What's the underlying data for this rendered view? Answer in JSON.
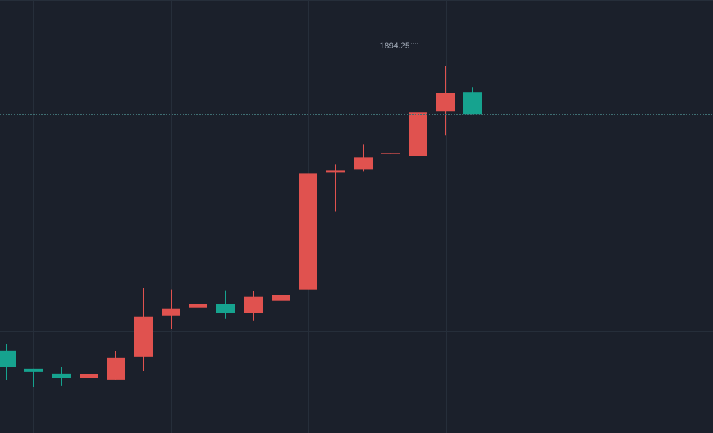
{
  "chart_data": {
    "type": "candlestick",
    "categories": [
      null,
      null,
      null,
      null,
      null,
      null,
      null,
      null,
      null,
      null,
      null,
      null,
      null,
      null,
      null,
      null,
      null,
      null
    ],
    "open": [
      1849.9,
      1847.3,
      1846.6,
      1845.9,
      1845.7,
      1849.0,
      1854.9,
      1856.1,
      1856.6,
      1855.3,
      1857.1,
      1858.7,
      1875.6,
      1876.0,
      1878.3,
      1878.0,
      1884.4,
      1887.2
    ],
    "high": [
      1850.8,
      1847.3,
      1847.5,
      1847.2,
      1849.8,
      1858.9,
      1858.7,
      1857.1,
      1858.6,
      1858.5,
      1860.0,
      1878.0,
      1876.8,
      1879.7,
      1878.4,
      1894.25,
      1891.0,
      1887.9
    ],
    "low": [
      1845.6,
      1844.6,
      1844.8,
      1845.1,
      1845.7,
      1846.9,
      1853.0,
      1855.0,
      1854.5,
      1854.2,
      1856.3,
      1856.7,
      1870.0,
      1875.8,
      1878.3,
      1878.0,
      1881.0,
      1884.0
    ],
    "close": [
      1847.5,
      1846.8,
      1845.9,
      1846.5,
      1848.9,
      1854.8,
      1855.9,
      1856.6,
      1855.3,
      1857.7,
      1857.9,
      1875.5,
      1875.9,
      1877.8,
      1878.4,
      1884.3,
      1887.1,
      1884.0
    ],
    "up_color": "#e0524f",
    "down_color": "#16a38f",
    "ylim": [
      1838,
      1900.5
    ],
    "grid": true,
    "last_price_line": true
  }
}
